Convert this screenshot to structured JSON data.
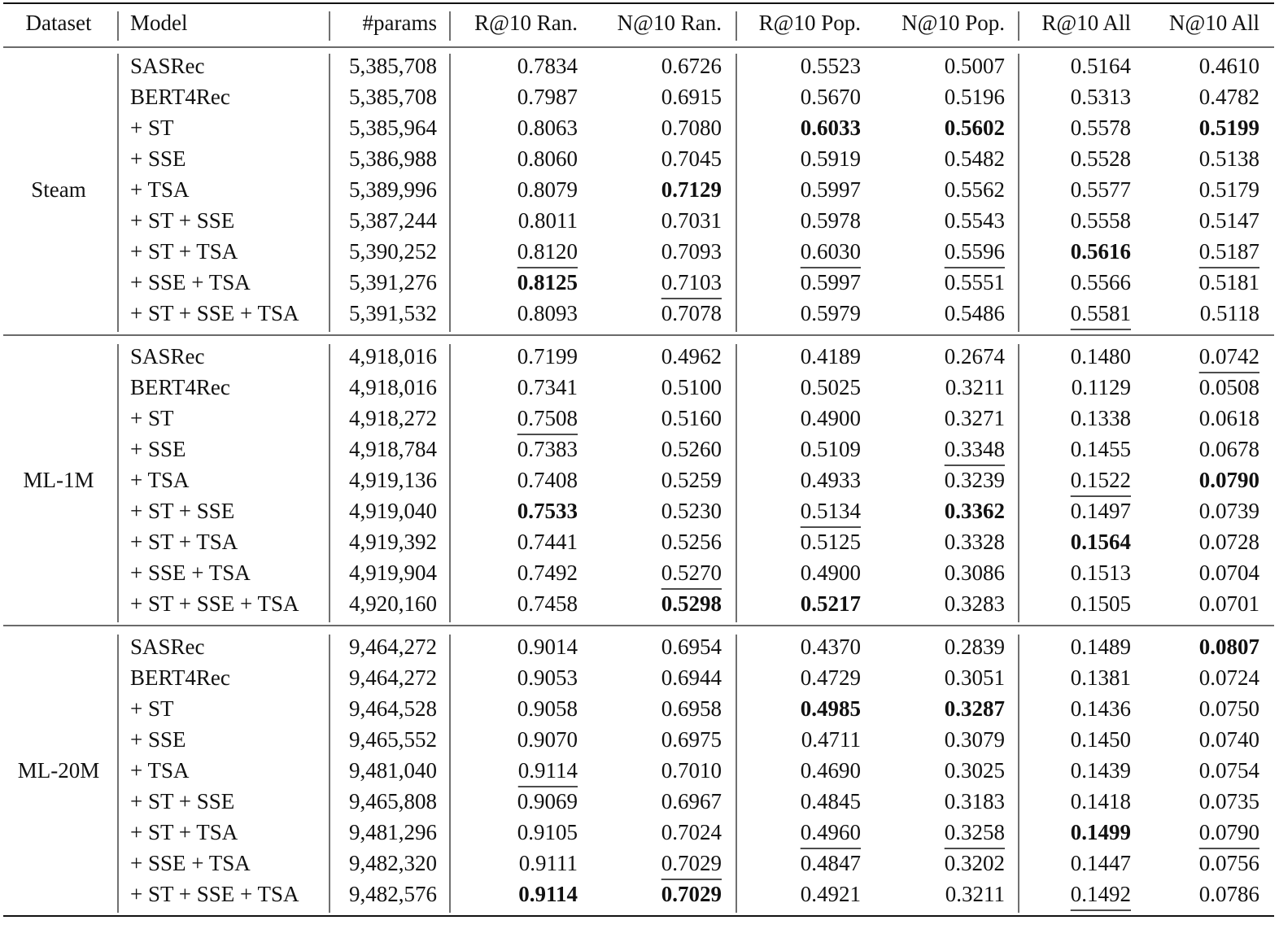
{
  "table": {
    "header": [
      "Dataset",
      "Model",
      "#params",
      "R@10 Ran.",
      "N@10 Ran.",
      "R@10 Pop.",
      "N@10 Pop.",
      "R@10 All",
      "N@10 All"
    ],
    "groups": [
      {
        "dataset": "Steam",
        "rows": [
          [
            "SASRec",
            "5,385,708",
            "0.7834",
            "0.6726",
            "0.5523",
            "0.5007",
            "0.5164",
            "0.4610"
          ],
          [
            "BERT4Rec",
            "5,385,708",
            "0.7987",
            "0.6915",
            "0.5670",
            "0.5196",
            "0.5313",
            "0.4782"
          ],
          [
            "+ ST",
            "5,385,964",
            "0.8063",
            "0.7080",
            {
              "text": "0.6033",
              "style": "bold"
            },
            {
              "text": "0.5602",
              "style": "bold"
            },
            "0.5578",
            {
              "text": "0.5199",
              "style": "bold"
            }
          ],
          [
            "+ SSE",
            "5,386,988",
            "0.8060",
            "0.7045",
            "0.5919",
            "0.5482",
            "0.5528",
            "0.5138"
          ],
          [
            "+ TSA",
            "5,389,996",
            "0.8079",
            {
              "text": "0.7129",
              "style": "bold"
            },
            "0.5997",
            "0.5562",
            "0.5577",
            "0.5179"
          ],
          [
            "+ ST + SSE",
            "5,387,244",
            "0.8011",
            "0.7031",
            "0.5978",
            "0.5543",
            "0.5558",
            "0.5147"
          ],
          [
            "+ ST + TSA",
            "5,390,252",
            {
              "text": "0.8120",
              "style": "underline"
            },
            "0.7093",
            {
              "text": "0.6030",
              "style": "underline"
            },
            {
              "text": "0.5596",
              "style": "underline"
            },
            {
              "text": "0.5616",
              "style": "bold"
            },
            {
              "text": "0.5187",
              "style": "underline"
            }
          ],
          [
            "+ SSE + TSA",
            "5,391,276",
            {
              "text": "0.8125",
              "style": "bold"
            },
            {
              "text": "0.7103",
              "style": "underline"
            },
            "0.5997",
            "0.5551",
            "0.5566",
            "0.5181"
          ],
          [
            "+ ST + SSE + TSA",
            "5,391,532",
            "0.8093",
            "0.7078",
            "0.5979",
            "0.5486",
            {
              "text": "0.5581",
              "style": "underline"
            },
            "0.5118"
          ]
        ]
      },
      {
        "dataset": "ML-1M",
        "rows": [
          [
            "SASRec",
            "4,918,016",
            "0.7199",
            "0.4962",
            "0.4189",
            "0.2674",
            "0.1480",
            {
              "text": "0.0742",
              "style": "underline"
            }
          ],
          [
            "BERT4Rec",
            "4,918,016",
            "0.7341",
            "0.5100",
            "0.5025",
            "0.3211",
            "0.1129",
            "0.0508"
          ],
          [
            "+ ST",
            "4,918,272",
            {
              "text": "0.7508",
              "style": "underline"
            },
            "0.5160",
            "0.4900",
            "0.3271",
            "0.1338",
            "0.0618"
          ],
          [
            "+ SSE",
            "4,918,784",
            "0.7383",
            "0.5260",
            "0.5109",
            {
              "text": "0.3348",
              "style": "underline"
            },
            "0.1455",
            "0.0678"
          ],
          [
            "+ TSA",
            "4,919,136",
            "0.7408",
            "0.5259",
            "0.4933",
            "0.3239",
            {
              "text": "0.1522",
              "style": "underline"
            },
            {
              "text": "0.0790",
              "style": "bold"
            }
          ],
          [
            "+ ST + SSE",
            "4,919,040",
            {
              "text": "0.7533",
              "style": "bold"
            },
            "0.5230",
            {
              "text": "0.5134",
              "style": "underline"
            },
            {
              "text": "0.3362",
              "style": "bold"
            },
            "0.1497",
            "0.0739"
          ],
          [
            "+ ST + TSA",
            "4,919,392",
            "0.7441",
            "0.5256",
            "0.5125",
            "0.3328",
            {
              "text": "0.1564",
              "style": "bold"
            },
            "0.0728"
          ],
          [
            "+ SSE + TSA",
            "4,919,904",
            "0.7492",
            {
              "text": "0.5270",
              "style": "underline"
            },
            "0.4900",
            "0.3086",
            "0.1513",
            "0.0704"
          ],
          [
            "+ ST + SSE + TSA",
            "4,920,160",
            "0.7458",
            {
              "text": "0.5298",
              "style": "bold"
            },
            {
              "text": "0.5217",
              "style": "bold"
            },
            "0.3283",
            "0.1505",
            "0.0701"
          ]
        ]
      },
      {
        "dataset": "ML-20M",
        "rows": [
          [
            "SASRec",
            "9,464,272",
            "0.9014",
            "0.6954",
            "0.4370",
            "0.2839",
            "0.1489",
            {
              "text": "0.0807",
              "style": "bold"
            }
          ],
          [
            "BERT4Rec",
            "9,464,272",
            "0.9053",
            "0.6944",
            "0.4729",
            "0.3051",
            "0.1381",
            "0.0724"
          ],
          [
            "+ ST",
            "9,464,528",
            "0.9058",
            "0.6958",
            {
              "text": "0.4985",
              "style": "bold"
            },
            {
              "text": "0.3287",
              "style": "bold"
            },
            "0.1436",
            "0.0750"
          ],
          [
            "+ SSE",
            "9,465,552",
            "0.9070",
            "0.6975",
            "0.4711",
            "0.3079",
            "0.1450",
            "0.0740"
          ],
          [
            "+ TSA",
            "9,481,040",
            {
              "text": "0.9114",
              "style": "underline"
            },
            "0.7010",
            "0.4690",
            "0.3025",
            "0.1439",
            "0.0754"
          ],
          [
            "+ ST + SSE",
            "9,465,808",
            "0.9069",
            "0.6967",
            "0.4845",
            "0.3183",
            "0.1418",
            "0.0735"
          ],
          [
            "+ ST + TSA",
            "9,481,296",
            "0.9105",
            "0.7024",
            {
              "text": "0.4960",
              "style": "underline"
            },
            {
              "text": "0.3258",
              "style": "underline"
            },
            {
              "text": "0.1499",
              "style": "bold"
            },
            {
              "text": "0.0790",
              "style": "underline"
            }
          ],
          [
            "+ SSE + TSA",
            "9,482,320",
            "0.9111",
            {
              "text": "0.7029",
              "style": "underline"
            },
            "0.4847",
            "0.3202",
            "0.1447",
            "0.0756"
          ],
          [
            "+ ST + SSE + TSA",
            "9,482,576",
            {
              "text": "0.9114",
              "style": "bold"
            },
            {
              "text": "0.7029",
              "style": "bold"
            },
            "0.4921",
            "0.3211",
            {
              "text": "0.1492",
              "style": "underline"
            },
            "0.0786"
          ]
        ]
      }
    ]
  }
}
